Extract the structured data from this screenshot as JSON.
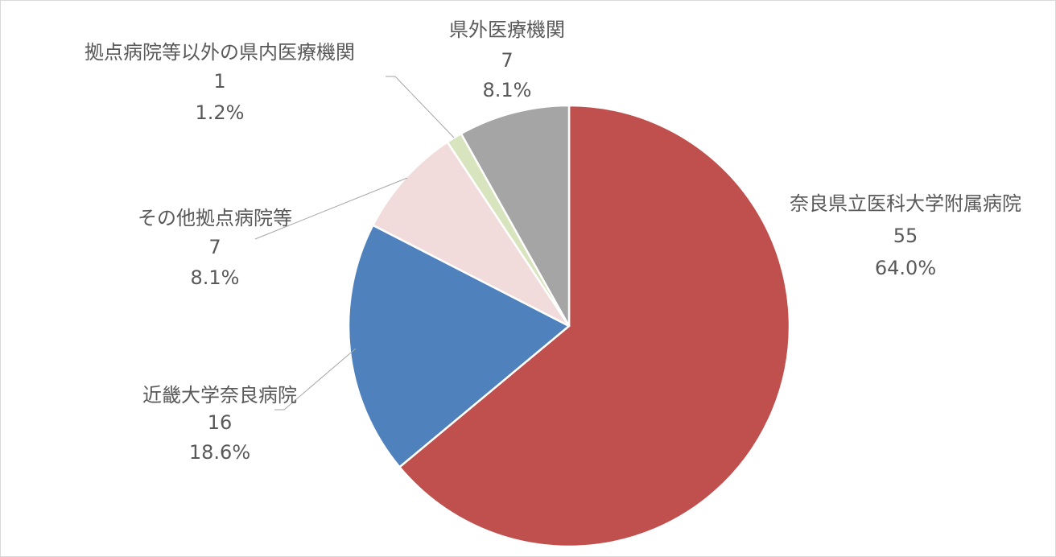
{
  "chart_data": {
    "type": "pie",
    "start_angle_deg": 0,
    "direction": "clockwise",
    "slices": [
      {
        "label": "奈良県立医科大学附属病院",
        "value": 55,
        "percent": "64.0%",
        "color": "#c0504d"
      },
      {
        "label": "近畿大学奈良病院",
        "value": 16,
        "percent": "18.6%",
        "color": "#4f81bd"
      },
      {
        "label": "その他拠点病院等",
        "value": 7,
        "percent": "8.1%",
        "color": "#f2dcdb"
      },
      {
        "label": "拠点病院等以外の県内医療機関",
        "value": 1,
        "percent": "1.2%",
        "color": "#d7e4bd"
      },
      {
        "label": "県外医療機関",
        "value": 7,
        "percent": "8.1%",
        "color": "#a5a5a5"
      }
    ],
    "legend": "none",
    "data_labels": "category, value, percent"
  }
}
